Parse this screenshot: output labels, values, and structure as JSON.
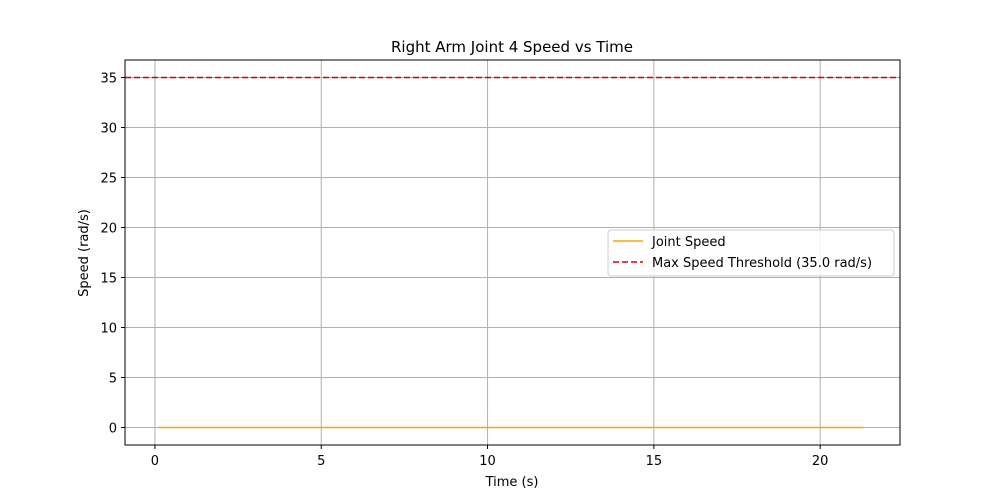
{
  "chart_data": {
    "type": "line",
    "title": "Right Arm Joint 4 Speed vs Time",
    "xlabel": "Time (s)",
    "ylabel": "Speed (rad/s)",
    "xlim": [
      -0.9,
      22.4
    ],
    "ylim": [
      -1.75,
      36.75
    ],
    "xticks": [
      0,
      5,
      10,
      15,
      20
    ],
    "yticks": [
      0,
      5,
      10,
      15,
      20,
      25,
      30,
      35
    ],
    "grid": true,
    "legend_position": "center-right",
    "series": [
      {
        "name": "Joint Speed",
        "color": "#ffa500",
        "style": "solid",
        "x": [
          0.1,
          21.3
        ],
        "y": [
          0,
          0
        ]
      },
      {
        "name": "Max Speed Threshold (35.0 rad/s)",
        "color": "#dd0000",
        "style": "dashed",
        "x": [
          -0.9,
          22.4
        ],
        "y": [
          35,
          35
        ]
      }
    ]
  }
}
